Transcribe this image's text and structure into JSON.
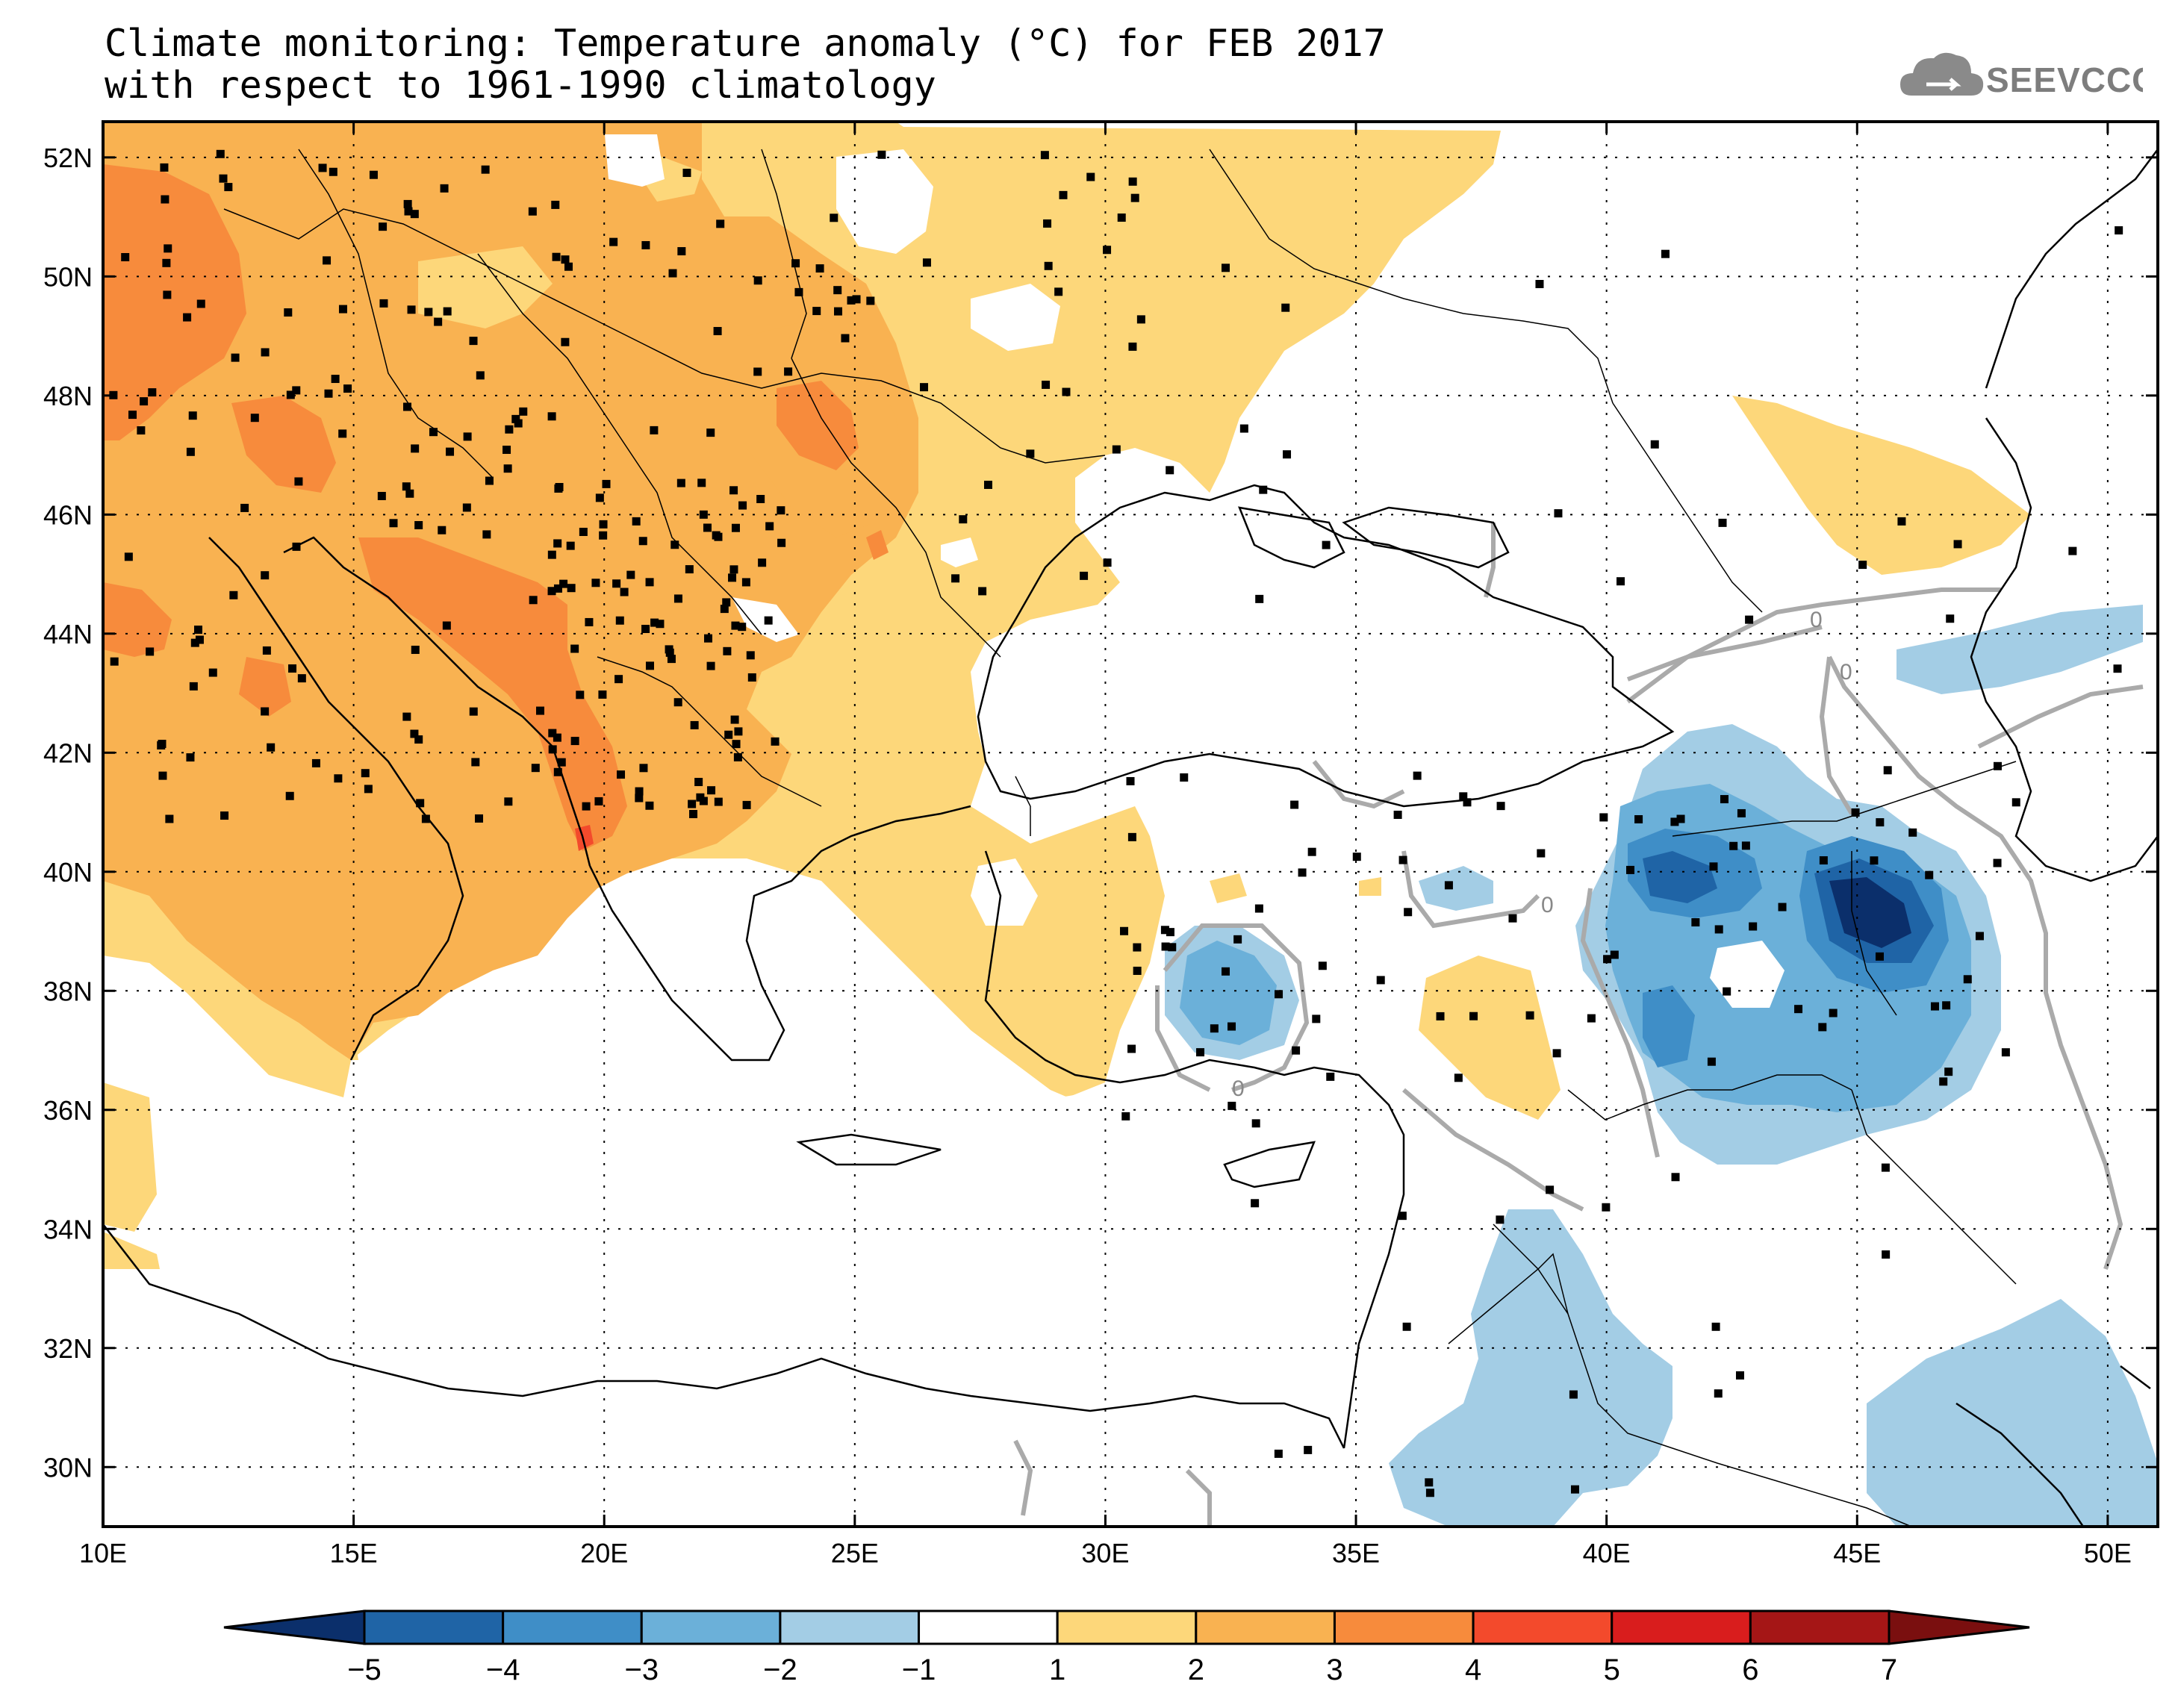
{
  "title": {
    "line1": "Climate monitoring: Temperature anomaly (°C) for FEB 2017",
    "line2": "with respect to 1961-1990 climatology"
  },
  "logo": {
    "text": "SEEVCCC",
    "icon": "cloud-icon"
  },
  "axes": {
    "lon_labels": [
      "10E",
      "15E",
      "20E",
      "25E",
      "30E",
      "35E",
      "40E",
      "45E",
      "50E"
    ],
    "lat_labels": [
      "52N",
      "50N",
      "48N",
      "46N",
      "44N",
      "42N",
      "40N",
      "38N",
      "36N",
      "34N",
      "32N",
      "30N"
    ],
    "lon_range": [
      10,
      51
    ],
    "lat_range": [
      29,
      52.6
    ]
  },
  "contour_labels": [
    "0",
    "0",
    "0",
    "0"
  ],
  "colorbar": {
    "ticks": [
      "−5",
      "−4",
      "−3",
      "−2",
      "−1",
      "1",
      "2",
      "3",
      "4",
      "5",
      "6",
      "7"
    ],
    "colors": [
      "#0b2f6b",
      "#1f64a6",
      "#3f8ec7",
      "#6bb0d9",
      "#a3cde5",
      "#ffffff",
      "#fdd77a",
      "#f9b251",
      "#f78b3c",
      "#f34a2c",
      "#d91d1d",
      "#a51616",
      "#7a0f0f"
    ]
  },
  "colors": {
    "warm1": "#fdd77a",
    "warm2": "#f9b251",
    "warm3": "#f78b3c",
    "warm4": "#f34a2c",
    "cold1": "#a3cde5",
    "cold2": "#6bb0d9",
    "cold3": "#3f8ec7",
    "cold4": "#1f64a6",
    "cold5": "#0b2f6b",
    "contour": "#aaaaaa"
  }
}
